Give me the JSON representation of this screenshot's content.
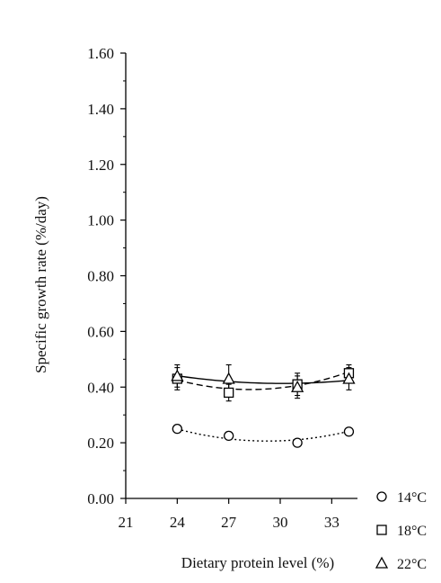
{
  "chart_data": {
    "type": "line",
    "title": "",
    "xlabel": "Dietary protein level (%)",
    "ylabel": "Specific growth rate (%/day)",
    "xlim": [
      21,
      34.5
    ],
    "ylim": [
      0,
      1.6
    ],
    "x_ticks": [
      "21",
      "24",
      "27",
      "30",
      "33"
    ],
    "y_ticks": [
      "0.00",
      "0.20",
      "0.40",
      "0.60",
      "0.80",
      "1.00",
      "1.20",
      "1.40",
      "1.60"
    ],
    "legend_position": "bottom-right-outside",
    "grid": false,
    "series": [
      {
        "name": "14°C",
        "marker": "circle",
        "line_style": "dotted",
        "x": [
          24,
          27,
          31,
          34
        ],
        "values": [
          0.25,
          0.225,
          0.2,
          0.24
        ],
        "errors": [
          0.01,
          0.01,
          0.01,
          0.01
        ],
        "fit": [
          0.248,
          0.218,
          0.207,
          0.243
        ]
      },
      {
        "name": "18°C",
        "marker": "square",
        "line_style": "dashed",
        "x": [
          24,
          27,
          31,
          34
        ],
        "values": [
          0.43,
          0.38,
          0.41,
          0.45
        ],
        "errors": [
          0.04,
          0.03,
          0.04,
          0.03
        ],
        "fit": [
          0.425,
          0.395,
          0.405,
          0.455
        ]
      },
      {
        "name": "22°C",
        "marker": "triangle",
        "line_style": "solid",
        "x": [
          24,
          27,
          31,
          34
        ],
        "values": [
          0.44,
          0.43,
          0.4,
          0.43
        ],
        "errors": [
          0.04,
          0.05,
          0.04,
          0.04
        ],
        "fit": [
          0.44,
          0.422,
          0.412,
          0.425
        ]
      }
    ]
  }
}
